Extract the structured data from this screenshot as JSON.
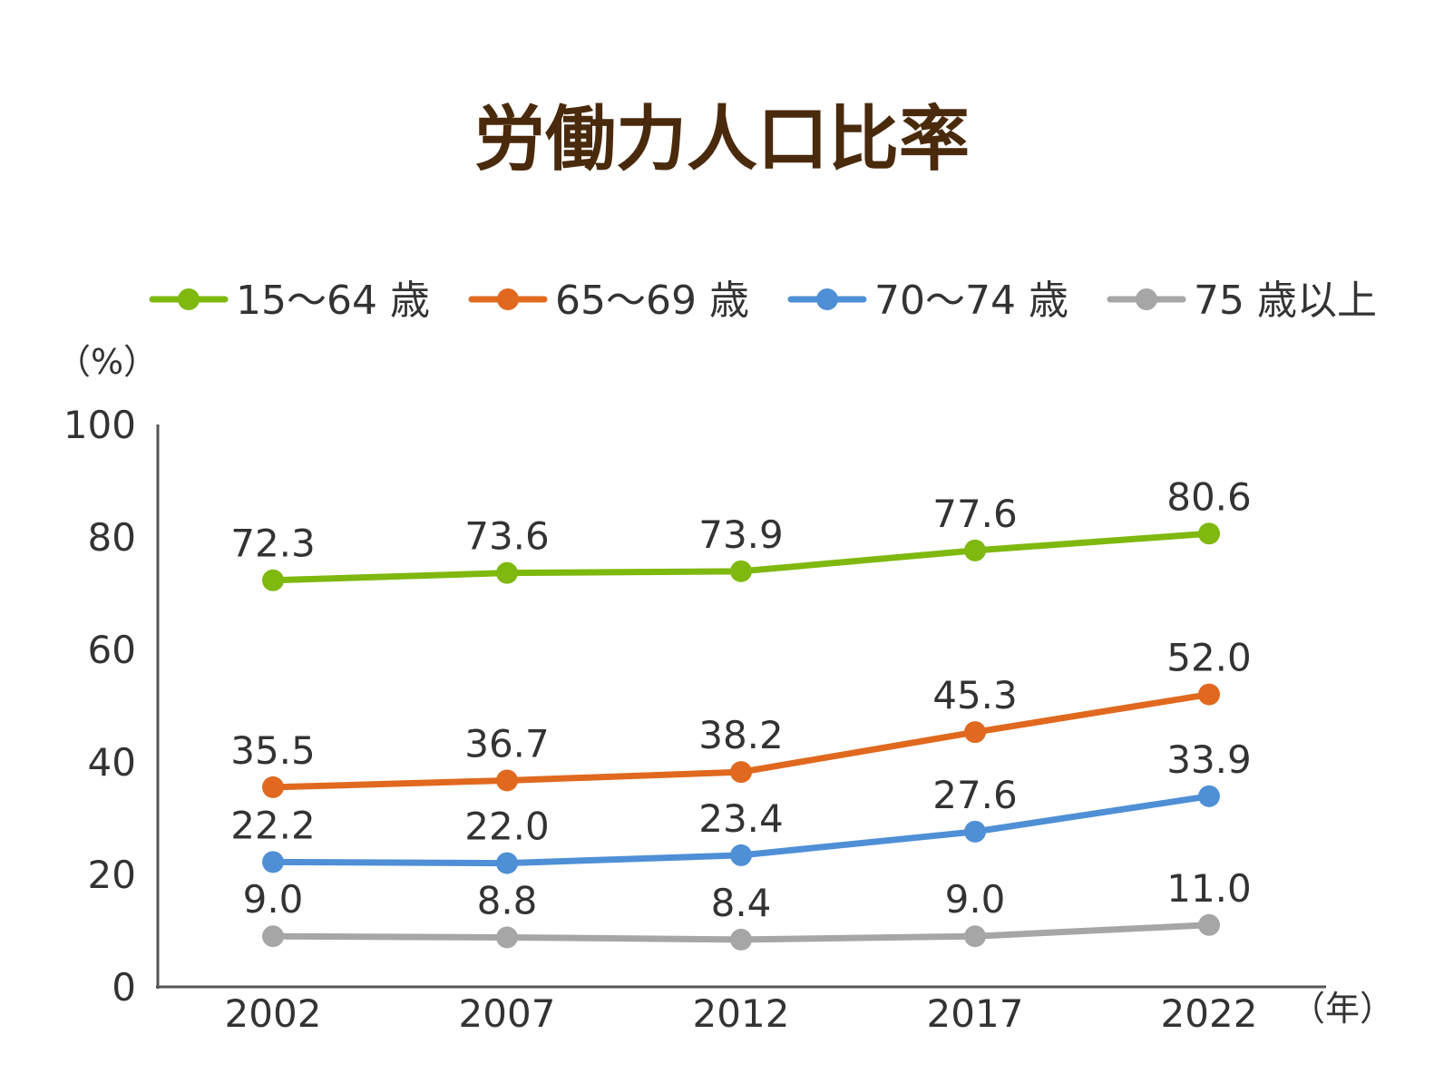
{
  "chart_data": {
    "type": "line",
    "title": "労働力人口比率",
    "y_unit_label": "（%）",
    "x_unit_label": "（年）",
    "categories": [
      "2002",
      "2007",
      "2012",
      "2017",
      "2022"
    ],
    "ylim": [
      0,
      100
    ],
    "yticks": [
      0,
      20,
      40,
      60,
      80,
      100
    ],
    "grid": false,
    "legend_position": "top",
    "series": [
      {
        "name": "15～64 歳",
        "color": "#7fb80e",
        "values": [
          72.3,
          73.6,
          73.9,
          77.6,
          80.6
        ]
      },
      {
        "name": "65～69 歳",
        "color": "#e0691f",
        "values": [
          35.5,
          36.7,
          38.2,
          45.3,
          52.0
        ]
      },
      {
        "name": "70～74 歳",
        "color": "#4f8fd6",
        "values": [
          22.2,
          22.0,
          23.4,
          27.6,
          33.9
        ]
      },
      {
        "name": "75 歳以上",
        "color": "#a6a6a6",
        "values": [
          9.0,
          8.8,
          8.4,
          9.0,
          11.0
        ]
      }
    ]
  }
}
